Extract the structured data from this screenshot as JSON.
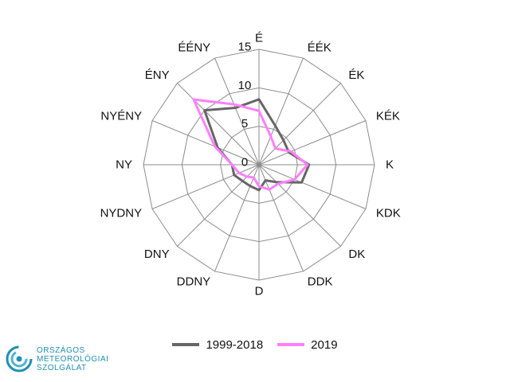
{
  "chart_data": {
    "type": "radar",
    "directions": [
      "É",
      "ÉÉK",
      "ÉK",
      "KÉK",
      "K",
      "KDK",
      "DK",
      "DDK",
      "D",
      "DDNY",
      "DNY",
      "NYDNY",
      "NY",
      "NYÉNY",
      "ÉNY",
      "ÉÉNY"
    ],
    "r_ticks": [
      0,
      5,
      10,
      15
    ],
    "rlim": [
      0,
      15
    ],
    "series": [
      {
        "name": "1999-2018",
        "color": "#666666",
        "values": [
          8.5,
          5.5,
          4.5,
          4.2,
          6.5,
          6.0,
          3.2,
          2.2,
          3.3,
          3.0,
          3.0,
          3.5,
          3.5,
          5.8,
          10.0,
          8.0
        ]
      },
      {
        "name": "2019",
        "color": "#ff80ff",
        "values": [
          7.0,
          4.0,
          3.0,
          4.5,
          6.3,
          5.0,
          3.5,
          3.5,
          2.8,
          1.8,
          2.2,
          2.8,
          3.5,
          6.2,
          12.0,
          8.5
        ]
      }
    ],
    "grid": true,
    "legend_position": "bottom"
  },
  "logo": {
    "icon": "omsz-swirl-icon",
    "lines": [
      "ORSZÁGOS",
      "METEOROLÓGIAI",
      "SZOLGÁLAT"
    ],
    "color": "#1f8fb4"
  }
}
